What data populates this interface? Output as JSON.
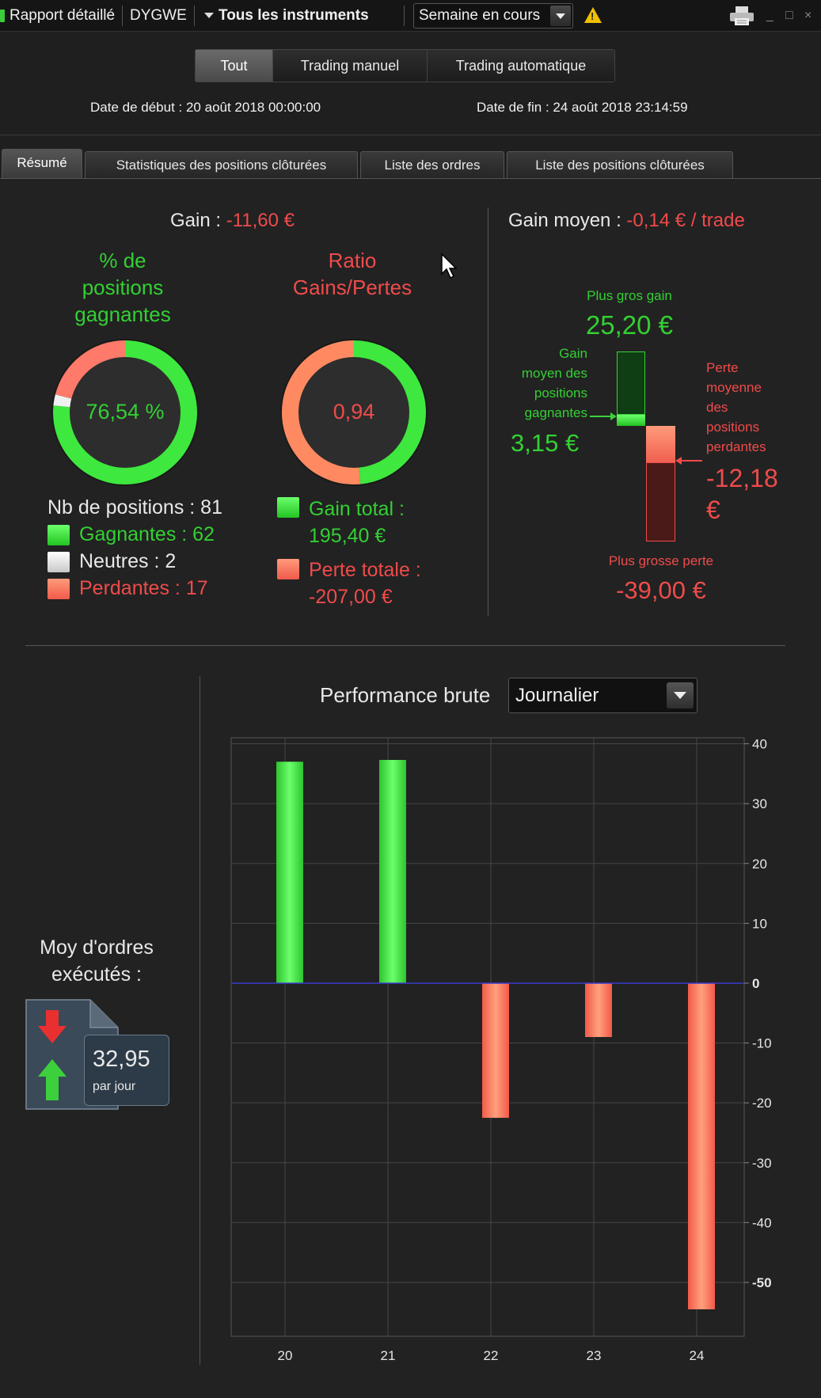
{
  "titlebar": {
    "report_label": "Rapport détaillé",
    "account": "DYGWE",
    "instruments": "Tous les instruments",
    "period": "Semaine en cours",
    "minimize": "_",
    "maximize": "□",
    "close": "×"
  },
  "mode_tabs": [
    {
      "label": "Tout",
      "active": true
    },
    {
      "label": "Trading manuel",
      "active": false
    },
    {
      "label": "Trading automatique",
      "active": false
    }
  ],
  "dates": {
    "start": "Date de début :  20 août 2018 00:00:00",
    "end": "Date de fin :  24 août 2018 23:14:59"
  },
  "report_tabs": [
    {
      "label": "Résumé",
      "active": true
    },
    {
      "label": "Statistiques des positions clôturées",
      "active": false
    },
    {
      "label": "Liste des ordres",
      "active": false
    },
    {
      "label": "Liste des positions clôturées",
      "active": false
    }
  ],
  "summary": {
    "gain_label": "Gain :",
    "gain_value": "-11,60 €",
    "win_pct_title": [
      "% de",
      "positions",
      "gagnantes"
    ],
    "win_pct_value": "76,54 %",
    "ratio_title": [
      "Ratio",
      "Gains/Pertes"
    ],
    "ratio_value": "0,94",
    "nb_positions": "Nb de positions : 81",
    "winners": "Gagnantes : 62",
    "neutral": "Neutres : 2",
    "losers": "Perdantes : 17",
    "total_gain_label": "Gain total :",
    "total_gain_value": "195,40 €",
    "total_loss_label": "Perte totale :",
    "total_loss_value": "-207,00 €",
    "donut_win": {
      "win": 62,
      "neutral": 2,
      "lose": 17
    },
    "donut_ratio": {
      "gain": 195.4,
      "loss": 207.0
    }
  },
  "avg": {
    "label": "Gain moyen :",
    "value": "-0,14 € / trade",
    "biggest_gain_label": "Plus gros gain",
    "biggest_gain_value": "25,20 €",
    "avg_win_label": [
      "Gain",
      "moyen des",
      "positions",
      "gagnantes"
    ],
    "avg_win_value": "3,15 €",
    "avg_loss_label": [
      "Perte",
      "moyenne",
      "des",
      "positions",
      "perdantes"
    ],
    "avg_loss_value": [
      "-12,18",
      "€"
    ],
    "biggest_loss_label": "Plus grosse perte",
    "biggest_loss_value": "-39,00 €"
  },
  "orders": {
    "label": [
      "Moy d'ordres",
      "exécutés :"
    ],
    "value": "32,95",
    "unit": "par jour"
  },
  "chart_header": {
    "title": "Performance brute",
    "granularity": "Journalier"
  },
  "chart_data": {
    "type": "bar",
    "categories": [
      "20",
      "21",
      "22",
      "23",
      "24"
    ],
    "values": [
      37,
      37.3,
      -22.5,
      -9,
      -54.5
    ],
    "ylim": [
      -59,
      41
    ],
    "yticks": [
      40,
      30,
      20,
      10,
      0,
      -10,
      -20,
      -30,
      -40,
      -50
    ],
    "ytick_labels": [
      "40",
      "30",
      "20",
      "10",
      "0",
      "-10",
      "-20",
      "-30",
      "-40",
      "-50"
    ],
    "grid": true,
    "positive_color": "#3ee83e",
    "negative_color": "#ff7a62",
    "zero_line_color": "#3a3ad0"
  }
}
